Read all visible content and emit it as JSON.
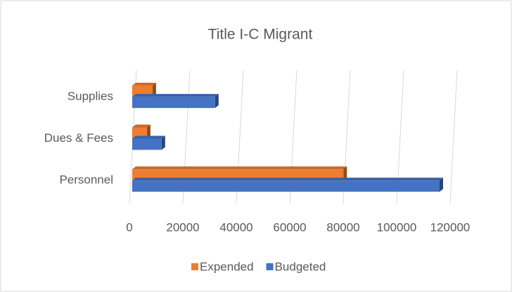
{
  "chart_data": {
    "type": "bar",
    "orientation": "horizontal",
    "title": "Title I-C Migrant",
    "categories": [
      "Personnel",
      "Dues & Fees",
      "Supplies"
    ],
    "series": [
      {
        "name": "Expended",
        "color": "#ed7d31",
        "values": [
          79000,
          5500,
          7600
        ]
      },
      {
        "name": "Budgeted",
        "color": "#4472c4",
        "values": [
          115000,
          11000,
          31000
        ]
      }
    ],
    "xlim": [
      0,
      120000
    ],
    "xticks": [
      0,
      20000,
      40000,
      60000,
      80000,
      100000,
      120000
    ],
    "grid": true,
    "legend": "bottom"
  }
}
